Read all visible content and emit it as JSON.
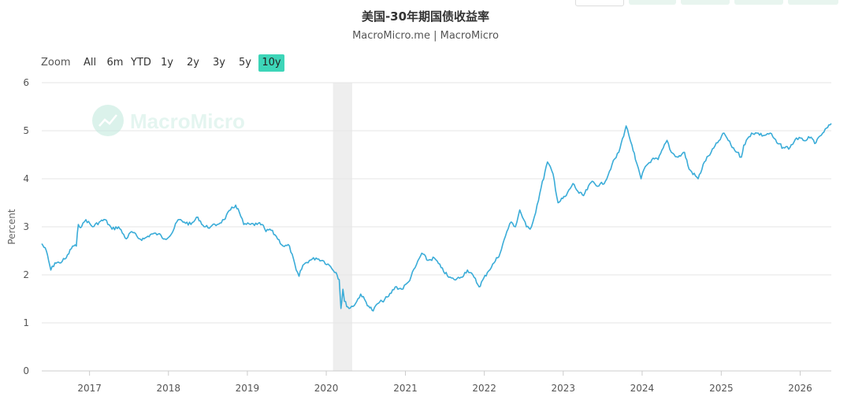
{
  "header": {
    "title": "美国-30年期国债收益率",
    "subtitle": "MacroMicro.me | MacroMicro"
  },
  "watermark": {
    "text": "MacroMicro",
    "icon": "chart-logo-icon"
  },
  "range_selector": {
    "label": "Zoom",
    "buttons": [
      "All",
      "6m",
      "YTD",
      "1y",
      "2y",
      "3y",
      "5y",
      "10y"
    ],
    "active": "10y",
    "active_color": "#3dd5b8"
  },
  "colors": {
    "line": "#3aacd8",
    "recession_band": "#eeeeee",
    "grid": "#e6e6e6"
  },
  "chart_data": {
    "type": "line",
    "title": "美国-30年期国债收益率",
    "subtitle": "MacroMicro.me | MacroMicro",
    "xlabel": "",
    "ylabel": "Percent",
    "ylim": [
      0,
      6
    ],
    "yticks": [
      0,
      1,
      2,
      3,
      4,
      5,
      6
    ],
    "xlim": [
      "2016-05-25",
      "2026-05-25"
    ],
    "xticks": [
      "2017",
      "2018",
      "2019",
      "2020",
      "2021",
      "2022",
      "2023",
      "2024",
      "2025",
      "2026"
    ],
    "grid": true,
    "shaded_regions": [
      {
        "start": "2020-02-01",
        "end": "2020-04-30"
      }
    ],
    "series": [
      {
        "x": [
          "2016-05-25",
          "2016-06-15",
          "2016-07-06",
          "2016-07-25",
          "2016-08-15",
          "2016-09-15",
          "2016-10-15",
          "2016-11-01",
          "2016-11-10",
          "2016-11-25",
          "2016-12-15",
          "2017-01-15",
          "2017-02-15",
          "2017-03-14",
          "2017-04-15",
          "2017-05-15",
          "2017-06-20",
          "2017-07-15",
          "2017-08-20",
          "2017-09-10",
          "2017-10-15",
          "2017-11-15",
          "2017-12-15",
          "2018-01-15",
          "2018-02-15",
          "2018-03-15",
          "2018-04-15",
          "2018-05-17",
          "2018-06-15",
          "2018-07-15",
          "2018-08-15",
          "2018-09-15",
          "2018-10-15",
          "2018-11-08",
          "2018-11-25",
          "2018-12-15",
          "2019-01-15",
          "2019-02-15",
          "2019-03-10",
          "2019-03-28",
          "2019-04-15",
          "2019-05-15",
          "2019-06-15",
          "2019-07-15",
          "2019-08-15",
          "2019-08-28",
          "2019-09-15",
          "2019-10-15",
          "2019-11-15",
          "2019-12-15",
          "2020-01-15",
          "2020-02-15",
          "2020-03-01",
          "2020-03-09",
          "2020-03-18",
          "2020-03-25",
          "2020-04-15",
          "2020-05-15",
          "2020-06-08",
          "2020-07-15",
          "2020-08-05",
          "2020-08-25",
          "2020-09-15",
          "2020-10-15",
          "2020-11-15",
          "2020-12-15",
          "2021-01-15",
          "2021-02-15",
          "2021-03-18",
          "2021-04-15",
          "2021-05-15",
          "2021-06-15",
          "2021-07-20",
          "2021-08-15",
          "2021-09-15",
          "2021-10-15",
          "2021-11-15",
          "2021-12-08",
          "2022-01-15",
          "2022-02-15",
          "2022-03-15",
          "2022-04-15",
          "2022-05-05",
          "2022-05-25",
          "2022-06-14",
          "2022-07-15",
          "2022-08-01",
          "2022-08-20",
          "2022-09-15",
          "2022-10-20",
          "2022-11-15",
          "2022-12-08",
          "2023-01-15",
          "2023-02-15",
          "2023-03-15",
          "2023-04-05",
          "2023-05-15",
          "2023-06-15",
          "2023-07-15",
          "2023-08-15",
          "2023-09-15",
          "2023-10-19",
          "2023-11-01",
          "2023-11-15",
          "2023-12-01",
          "2023-12-27",
          "2024-01-15",
          "2024-02-15",
          "2024-03-15",
          "2024-04-25",
          "2024-05-15",
          "2024-06-15",
          "2024-07-15",
          "2024-08-05",
          "2024-09-16",
          "2024-10-15",
          "2024-11-15",
          "2024-12-15",
          "2025-01-14",
          "2025-02-15",
          "2025-03-15",
          "2025-04-04",
          "2025-04-15",
          "2025-05-21",
          "2025-06-15",
          "2025-07-15",
          "2025-08-15",
          "2025-09-15",
          "2025-10-15",
          "2025-11-15",
          "2025-12-15",
          "2026-01-15",
          "2026-02-15",
          "2026-03-15",
          "2026-04-15",
          "2026-05-25"
        ],
        "values": [
          2.65,
          2.5,
          2.1,
          2.25,
          2.25,
          2.35,
          2.6,
          2.6,
          3.05,
          3.0,
          3.15,
          3.0,
          3.1,
          3.15,
          2.95,
          3.0,
          2.75,
          2.9,
          2.75,
          2.75,
          2.85,
          2.85,
          2.75,
          2.85,
          3.15,
          3.1,
          3.05,
          3.2,
          3.0,
          3.0,
          3.05,
          3.15,
          3.35,
          3.45,
          3.3,
          3.05,
          3.05,
          3.05,
          3.05,
          2.9,
          2.95,
          2.8,
          2.6,
          2.6,
          2.1,
          1.97,
          2.2,
          2.3,
          2.35,
          2.3,
          2.2,
          2.05,
          1.9,
          1.3,
          1.7,
          1.45,
          1.3,
          1.4,
          1.6,
          1.35,
          1.25,
          1.4,
          1.45,
          1.55,
          1.75,
          1.7,
          1.85,
          2.15,
          2.45,
          2.3,
          2.35,
          2.15,
          1.95,
          1.9,
          1.95,
          2.1,
          1.95,
          1.75,
          2.05,
          2.25,
          2.45,
          2.9,
          3.1,
          3.0,
          3.35,
          3.0,
          2.95,
          3.2,
          3.7,
          4.35,
          4.1,
          3.5,
          3.65,
          3.9,
          3.7,
          3.65,
          3.95,
          3.85,
          3.95,
          4.3,
          4.55,
          5.1,
          4.9,
          4.7,
          4.4,
          4.0,
          4.25,
          4.4,
          4.4,
          4.8,
          4.55,
          4.45,
          4.55,
          4.2,
          4.0,
          4.35,
          4.55,
          4.75,
          4.95,
          4.7,
          4.55,
          4.45,
          4.7,
          4.95,
          4.95,
          4.9,
          4.95,
          4.75,
          4.65,
          4.65,
          4.85,
          4.8,
          4.85,
          4.75,
          4.95,
          5.15
        ]
      }
    ]
  }
}
